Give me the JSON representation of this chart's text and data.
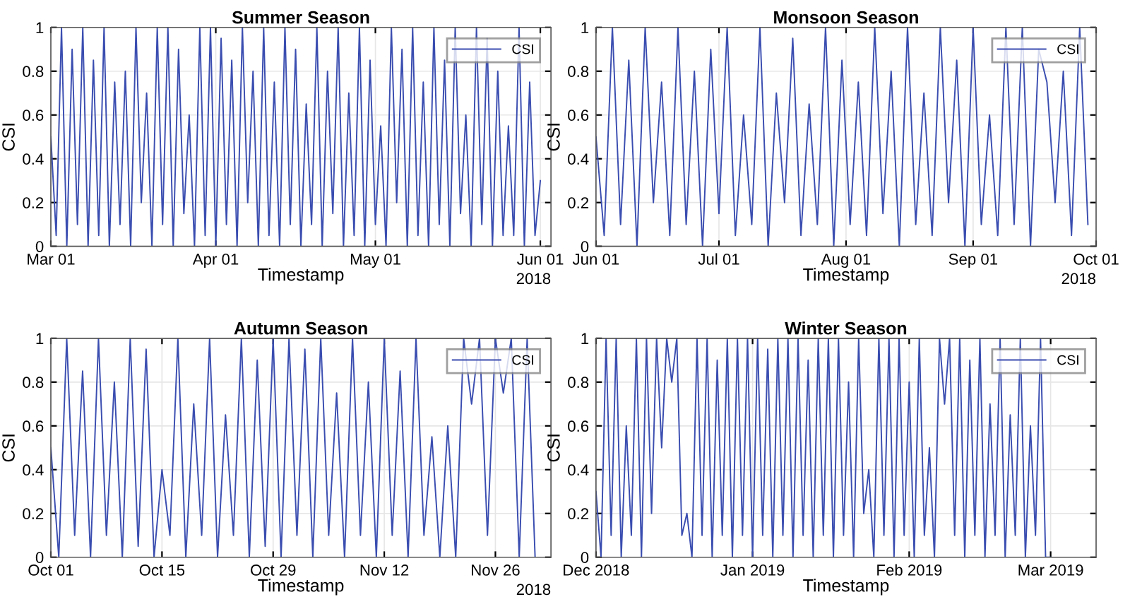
{
  "chart_data": [
    {
      "type": "line",
      "title": "Summer Season",
      "xlabel": "Timestamp",
      "ylabel": "CSI",
      "annotations": [
        "2018"
      ],
      "grid": true,
      "legend": "top right",
      "xlim": [
        "2018-03-01",
        "2018-06-03"
      ],
      "xticks": [
        {
          "value": "2018-03-01",
          "label": "Mar 01"
        },
        {
          "value": "2018-04-01",
          "label": "Apr 01"
        },
        {
          "value": "2018-05-01",
          "label": "May 01"
        },
        {
          "value": "2018-06-01",
          "label": "Jun 01"
        }
      ],
      "ylim": [
        0,
        1
      ],
      "yticks": [
        0,
        0.2,
        0.4,
        0.6,
        0.8,
        1
      ],
      "series": [
        {
          "name": "CSI",
          "color": "#3a4db0",
          "x": [
            "2018-03-01",
            "2018-03-02",
            "2018-03-03",
            "2018-03-04",
            "2018-03-05",
            "2018-03-06",
            "2018-03-07",
            "2018-03-08",
            "2018-03-09",
            "2018-03-10",
            "2018-03-11",
            "2018-03-12",
            "2018-03-13",
            "2018-03-14",
            "2018-03-15",
            "2018-03-16",
            "2018-03-17",
            "2018-03-18",
            "2018-03-19",
            "2018-03-20",
            "2018-03-21",
            "2018-03-22",
            "2018-03-23",
            "2018-03-24",
            "2018-03-25",
            "2018-03-26",
            "2018-03-27",
            "2018-03-28",
            "2018-03-29",
            "2018-03-30",
            "2018-03-31",
            "2018-04-01",
            "2018-04-02",
            "2018-04-03",
            "2018-04-04",
            "2018-04-05",
            "2018-04-06",
            "2018-04-07",
            "2018-04-08",
            "2018-04-09",
            "2018-04-10",
            "2018-04-11",
            "2018-04-12",
            "2018-04-13",
            "2018-04-14",
            "2018-04-15",
            "2018-04-16",
            "2018-04-17",
            "2018-04-18",
            "2018-04-19",
            "2018-04-20",
            "2018-04-21",
            "2018-04-22",
            "2018-04-23",
            "2018-04-24",
            "2018-04-25",
            "2018-04-26",
            "2018-04-27",
            "2018-04-28",
            "2018-04-29",
            "2018-04-30",
            "2018-05-01",
            "2018-05-02",
            "2018-05-03",
            "2018-05-04",
            "2018-05-05",
            "2018-05-06",
            "2018-05-07",
            "2018-05-08",
            "2018-05-09",
            "2018-05-10",
            "2018-05-11",
            "2018-05-12",
            "2018-05-13",
            "2018-05-14",
            "2018-05-15",
            "2018-05-16",
            "2018-05-17",
            "2018-05-18",
            "2018-05-19",
            "2018-05-20",
            "2018-05-21",
            "2018-05-22",
            "2018-05-23",
            "2018-05-24",
            "2018-05-25",
            "2018-05-26",
            "2018-05-27",
            "2018-05-28",
            "2018-05-29",
            "2018-05-30",
            "2018-05-31",
            "2018-06-01"
          ],
          "values": [
            0.5,
            0.05,
            1,
            0,
            0.9,
            0.1,
            1,
            0,
            0.85,
            0.05,
            1,
            0,
            0.75,
            0.1,
            0.8,
            0,
            1,
            0.2,
            0.7,
            0,
            1,
            0.1,
            1,
            0,
            0.9,
            0.15,
            0.6,
            0,
            1,
            0.05,
            1,
            0,
            0.95,
            0.1,
            0.85,
            0,
            1,
            0.2,
            0.8,
            0,
            1,
            0.05,
            0.75,
            0,
            1,
            0.1,
            0.9,
            0,
            0.65,
            0.1,
            1,
            0,
            0.8,
            0.15,
            1,
            0,
            0.7,
            0.05,
            1,
            0,
            0.85,
            0.1,
            0.55,
            0,
            1,
            0.2,
            0.9,
            0,
            1,
            0.05,
            0.75,
            0,
            1,
            0.1,
            0.85,
            0,
            1,
            0.15,
            0.6,
            0,
            1,
            0.1,
            0.95,
            0,
            0.8,
            0.05,
            0.55,
            0.05,
            1,
            0,
            0.75,
            0.05,
            0.3
          ]
        }
      ]
    },
    {
      "type": "line",
      "title": "Monsoon Season",
      "xlabel": "Timestamp",
      "ylabel": "CSI",
      "annotations": [
        "2018"
      ],
      "grid": true,
      "legend": "top right",
      "xlim": [
        "2018-06-01",
        "2018-10-01"
      ],
      "xticks": [
        {
          "value": "2018-06-01",
          "label": "Jun 01"
        },
        {
          "value": "2018-07-01",
          "label": "Jul 01"
        },
        {
          "value": "2018-08-01",
          "label": "Aug 01"
        },
        {
          "value": "2018-09-01",
          "label": "Sep 01"
        },
        {
          "value": "2018-10-01",
          "label": "Oct 01"
        }
      ],
      "ylim": [
        0,
        1
      ],
      "yticks": [
        0,
        0.2,
        0.4,
        0.6,
        0.8,
        1
      ],
      "series": [
        {
          "name": "CSI",
          "color": "#3a4db0",
          "x": [
            "2018-06-01",
            "2018-06-03",
            "2018-06-05",
            "2018-06-07",
            "2018-06-09",
            "2018-06-11",
            "2018-06-13",
            "2018-06-15",
            "2018-06-17",
            "2018-06-19",
            "2018-06-21",
            "2018-06-23",
            "2018-06-25",
            "2018-06-27",
            "2018-06-29",
            "2018-07-01",
            "2018-07-03",
            "2018-07-05",
            "2018-07-07",
            "2018-07-09",
            "2018-07-11",
            "2018-07-13",
            "2018-07-15",
            "2018-07-17",
            "2018-07-19",
            "2018-07-21",
            "2018-07-23",
            "2018-07-25",
            "2018-07-27",
            "2018-07-29",
            "2018-07-31",
            "2018-08-02",
            "2018-08-04",
            "2018-08-06",
            "2018-08-08",
            "2018-08-10",
            "2018-08-12",
            "2018-08-14",
            "2018-08-16",
            "2018-08-18",
            "2018-08-20",
            "2018-08-22",
            "2018-08-24",
            "2018-08-26",
            "2018-08-28",
            "2018-08-30",
            "2018-09-01",
            "2018-09-03",
            "2018-09-05",
            "2018-09-07",
            "2018-09-09",
            "2018-09-11",
            "2018-09-13",
            "2018-09-15",
            "2018-09-17",
            "2018-09-19",
            "2018-09-21",
            "2018-09-23",
            "2018-09-25",
            "2018-09-27",
            "2018-09-29"
          ],
          "values": [
            0.5,
            0.05,
            1,
            0.1,
            0.85,
            0,
            1,
            0.2,
            0.75,
            0.05,
            1,
            0.1,
            0.8,
            0,
            0.9,
            0.15,
            1,
            0.05,
            0.6,
            0.1,
            1,
            0,
            0.7,
            0.2,
            0.95,
            0.05,
            0.65,
            0.1,
            1,
            0,
            0.85,
            0.1,
            0.75,
            0.05,
            1,
            0.15,
            0.8,
            0,
            1,
            0.1,
            0.7,
            0.05,
            1,
            0.2,
            0.85,
            0,
            1,
            0.1,
            0.6,
            0.05,
            1,
            0.1,
            1,
            0,
            0.9,
            0.75,
            0.2,
            0.8,
            0.05,
            1,
            0.1
          ]
        }
      ]
    },
    {
      "type": "line",
      "title": "Autumn Season",
      "xlabel": "Timestamp",
      "ylabel": "CSI",
      "annotations": [
        "2018"
      ],
      "grid": true,
      "legend": "top right",
      "xlim": [
        "2018-10-01",
        "2018-12-03"
      ],
      "xticks": [
        {
          "value": "2018-10-01",
          "label": "Oct 01"
        },
        {
          "value": "2018-10-15",
          "label": "Oct 15"
        },
        {
          "value": "2018-10-29",
          "label": "Oct 29"
        },
        {
          "value": "2018-11-12",
          "label": "Nov 12"
        },
        {
          "value": "2018-11-26",
          "label": "Nov 26"
        }
      ],
      "ylim": [
        0,
        1
      ],
      "yticks": [
        0,
        0.2,
        0.4,
        0.6,
        0.8,
        1
      ],
      "series": [
        {
          "name": "CSI",
          "color": "#3a4db0",
          "x": [
            "2018-10-01",
            "2018-10-02",
            "2018-10-03",
            "2018-10-04",
            "2018-10-05",
            "2018-10-06",
            "2018-10-07",
            "2018-10-08",
            "2018-10-09",
            "2018-10-10",
            "2018-10-11",
            "2018-10-12",
            "2018-10-13",
            "2018-10-14",
            "2018-10-15",
            "2018-10-16",
            "2018-10-17",
            "2018-10-18",
            "2018-10-19",
            "2018-10-20",
            "2018-10-21",
            "2018-10-22",
            "2018-10-23",
            "2018-10-24",
            "2018-10-25",
            "2018-10-26",
            "2018-10-27",
            "2018-10-28",
            "2018-10-29",
            "2018-10-30",
            "2018-10-31",
            "2018-11-01",
            "2018-11-02",
            "2018-11-03",
            "2018-11-04",
            "2018-11-05",
            "2018-11-06",
            "2018-11-07",
            "2018-11-08",
            "2018-11-09",
            "2018-11-10",
            "2018-11-11",
            "2018-11-12",
            "2018-11-13",
            "2018-11-14",
            "2018-11-15",
            "2018-11-16",
            "2018-11-17",
            "2018-11-18",
            "2018-11-19",
            "2018-11-20",
            "2018-11-21",
            "2018-11-22",
            "2018-11-23",
            "2018-11-24",
            "2018-11-25",
            "2018-11-26",
            "2018-11-27",
            "2018-11-28",
            "2018-11-29",
            "2018-11-30",
            "2018-12-01"
          ],
          "values": [
            0.5,
            0,
            1,
            0.1,
            0.85,
            0,
            1,
            0.1,
            0.8,
            0,
            1,
            0.05,
            0.95,
            0,
            0.4,
            0.1,
            1,
            0,
            0.7,
            0.1,
            1,
            0,
            0.65,
            0.1,
            1,
            0,
            0.9,
            0.05,
            1,
            0,
            1,
            0.1,
            0.95,
            0,
            1,
            0.1,
            0.75,
            0,
            1,
            0.1,
            0.8,
            0,
            1,
            0.1,
            0.85,
            0,
            1,
            0.1,
            0.55,
            0,
            0.6,
            0,
            1,
            0.7,
            1,
            0.1,
            1,
            0.75,
            1,
            0,
            1,
            0
          ]
        }
      ]
    },
    {
      "type": "line",
      "title": "Winter Season",
      "xlabel": "Timestamp",
      "ylabel": "CSI",
      "grid": true,
      "legend": "top right",
      "xlim": [
        "2018-12-01",
        "2019-03-10"
      ],
      "xticks": [
        {
          "value": "2018-12-01",
          "label": "Dec 2018"
        },
        {
          "value": "2019-01-01",
          "label": "Jan 2019"
        },
        {
          "value": "2019-02-01",
          "label": "Feb 2019"
        },
        {
          "value": "2019-03-01",
          "label": "Mar 2019"
        }
      ],
      "ylim": [
        0,
        1
      ],
      "yticks": [
        0,
        0.2,
        0.4,
        0.6,
        0.8,
        1
      ],
      "series": [
        {
          "name": "CSI",
          "color": "#3a4db0",
          "x": [
            "2018-12-01",
            "2018-12-02",
            "2018-12-03",
            "2018-12-04",
            "2018-12-05",
            "2018-12-06",
            "2018-12-07",
            "2018-12-08",
            "2018-12-09",
            "2018-12-10",
            "2018-12-11",
            "2018-12-12",
            "2018-12-13",
            "2018-12-14",
            "2018-12-15",
            "2018-12-16",
            "2018-12-17",
            "2018-12-18",
            "2018-12-19",
            "2018-12-20",
            "2018-12-21",
            "2018-12-22",
            "2018-12-23",
            "2018-12-24",
            "2018-12-25",
            "2018-12-26",
            "2018-12-27",
            "2018-12-28",
            "2018-12-29",
            "2018-12-30",
            "2018-12-31",
            "2019-01-01",
            "2019-01-02",
            "2019-01-03",
            "2019-01-04",
            "2019-01-05",
            "2019-01-06",
            "2019-01-07",
            "2019-01-08",
            "2019-01-09",
            "2019-01-10",
            "2019-01-11",
            "2019-01-12",
            "2019-01-13",
            "2019-01-14",
            "2019-01-15",
            "2019-01-16",
            "2019-01-17",
            "2019-01-18",
            "2019-01-19",
            "2019-01-20",
            "2019-01-21",
            "2019-01-22",
            "2019-01-23",
            "2019-01-24",
            "2019-01-25",
            "2019-01-26",
            "2019-01-27",
            "2019-01-28",
            "2019-01-29",
            "2019-01-30",
            "2019-01-31",
            "2019-02-01",
            "2019-02-02",
            "2019-02-03",
            "2019-02-04",
            "2019-02-05",
            "2019-02-06",
            "2019-02-07",
            "2019-02-08",
            "2019-02-09",
            "2019-02-10",
            "2019-02-11",
            "2019-02-12",
            "2019-02-13",
            "2019-02-14",
            "2019-02-15",
            "2019-02-16",
            "2019-02-17",
            "2019-02-18",
            "2019-02-19",
            "2019-02-20",
            "2019-02-21",
            "2019-02-22",
            "2019-02-23",
            "2019-02-24",
            "2019-02-25",
            "2019-02-26",
            "2019-02-27",
            "2019-02-28",
            "2019-03-01"
          ],
          "values": [
            0.3,
            0,
            1,
            0.1,
            1,
            0,
            0.6,
            0.1,
            1,
            0,
            1,
            0.2,
            1,
            0.5,
            1,
            0.8,
            1,
            0.1,
            0.2,
            0,
            1,
            0.1,
            1,
            0,
            0.9,
            0.1,
            1,
            0,
            1,
            0.1,
            1,
            0,
            1,
            0.1,
            0.95,
            0,
            1,
            0.1,
            1,
            0,
            1,
            0.1,
            0.9,
            0,
            1,
            0.1,
            1,
            0,
            1,
            0.1,
            0.8,
            0,
            1,
            0.2,
            0.4,
            0,
            1,
            0.1,
            1,
            0,
            1,
            0.1,
            0.8,
            0,
            1,
            0.1,
            0.5,
            0,
            1,
            0.7,
            1,
            0.1,
            1,
            0,
            0.9,
            0.1,
            1,
            0,
            0.7,
            0.1,
            1,
            0,
            0.65,
            0.1,
            1,
            0,
            0.6,
            0.1,
            1,
            0,
            0
          ]
        }
      ]
    }
  ]
}
